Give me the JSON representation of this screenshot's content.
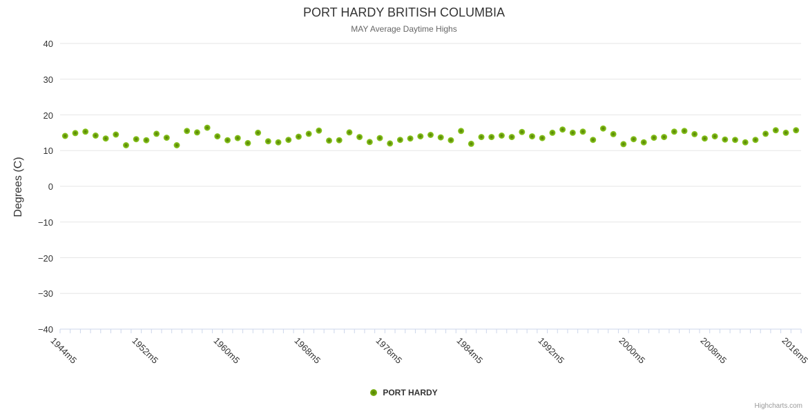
{
  "title": "PORT HARDY BRITISH COLUMBIA",
  "subtitle": "MAY Average Daytime Highs",
  "y_axis": {
    "title": "Degrees (C)"
  },
  "legend": {
    "series_label": "PORT HARDY"
  },
  "credits": "Highcharts.com",
  "colors": {
    "marker_center": "#4d7c02",
    "marker_mid": "#6da00c",
    "marker_edge": "#86c220",
    "grid_line": "#e6e6e6",
    "axis_line": "#ccd6eb",
    "label_text": "#333333",
    "subtitle_text": "#666666",
    "credits_text": "#999999"
  },
  "chart_data": {
    "type": "scatter",
    "title": "PORT HARDY BRITISH COLUMBIA",
    "subtitle": "MAY Average Daytime Highs",
    "ylabel": "Degrees (C)",
    "ylim": [
      -40,
      40
    ],
    "y_ticks": [
      40,
      30,
      20,
      10,
      0,
      -10,
      -20,
      -30,
      -40
    ],
    "grid": "horizontal",
    "legend_position": "bottom-center",
    "visible_x_labels": [
      "1944m5",
      "1952m5",
      "1960m5",
      "1968m5",
      "1976m5",
      "1984m5",
      "1992m5",
      "2000m5",
      "2008m5",
      "2016m5"
    ],
    "categories": [
      "1944m5",
      "1945m5",
      "1946m5",
      "1947m5",
      "1948m5",
      "1949m5",
      "1950m5",
      "1951m5",
      "1952m5",
      "1953m5",
      "1954m5",
      "1955m5",
      "1956m5",
      "1957m5",
      "1958m5",
      "1959m5",
      "1960m5",
      "1961m5",
      "1962m5",
      "1963m5",
      "1964m5",
      "1965m5",
      "1966m5",
      "1967m5",
      "1968m5",
      "1969m5",
      "1970m5",
      "1971m5",
      "1972m5",
      "1973m5",
      "1974m5",
      "1975m5",
      "1976m5",
      "1977m5",
      "1978m5",
      "1979m5",
      "1980m5",
      "1981m5",
      "1982m5",
      "1983m5",
      "1984m5",
      "1985m5",
      "1986m5",
      "1987m5",
      "1988m5",
      "1989m5",
      "1990m5",
      "1991m5",
      "1992m5",
      "1993m5",
      "1994m5",
      "1995m5",
      "1996m5",
      "1997m5",
      "1998m5",
      "1999m5",
      "2000m5",
      "2001m5",
      "2002m5",
      "2003m5",
      "2004m5",
      "2005m5",
      "2006m5",
      "2007m5",
      "2008m5",
      "2009m5",
      "2010m5",
      "2011m5",
      "2012m5",
      "2013m5",
      "2014m5",
      "2015m5",
      "2016m5"
    ],
    "series": [
      {
        "name": "PORT HARDY",
        "color": "#6da00c",
        "values": [
          14.1,
          14.9,
          15.3,
          14.2,
          13.4,
          14.5,
          11.5,
          13.2,
          12.9,
          14.7,
          13.6,
          11.5,
          15.5,
          15.1,
          16.4,
          14.0,
          12.9,
          13.5,
          12.1,
          15.0,
          12.6,
          12.3,
          13.0,
          13.9,
          14.7,
          15.6,
          12.8,
          12.9,
          15.1,
          13.8,
          12.4,
          13.5,
          12.0,
          13.0,
          13.4,
          14.0,
          14.4,
          13.7,
          12.9,
          15.5,
          11.9,
          13.8,
          13.8,
          14.2,
          13.8,
          15.2,
          14.0,
          13.5,
          15.0,
          15.9,
          15.0,
          15.3,
          13.0,
          16.2,
          14.6,
          11.8,
          13.2,
          12.3,
          13.6,
          13.8,
          15.3,
          15.5,
          14.6,
          13.4,
          14.0,
          13.1,
          13.0,
          12.3,
          13.0,
          14.7,
          15.7,
          15.0,
          15.7
        ]
      }
    ]
  }
}
